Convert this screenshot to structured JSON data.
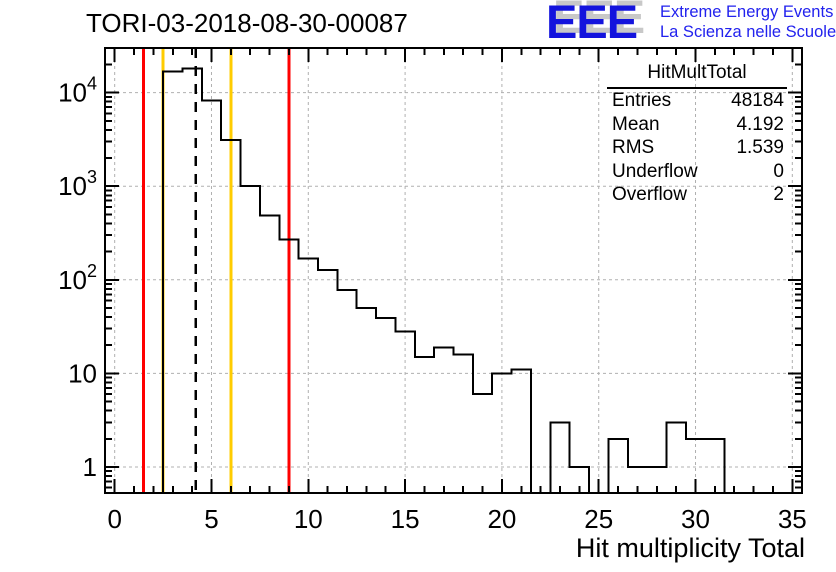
{
  "header": {
    "title": "TORI-03-2018-08-30-00087"
  },
  "logo": {
    "acronym": "EEE",
    "line1": "Extreme Energy Events",
    "line2": "La Scienza nelle Scuole",
    "text_color": "#2222ee",
    "acronym_color": "#1414dd",
    "shadow_color": "#c8c8c8"
  },
  "stats": {
    "title": "HitMultTotal",
    "rows": [
      {
        "label": "Entries",
        "value": "48184"
      },
      {
        "label": "Mean",
        "value": "4.192"
      },
      {
        "label": "RMS",
        "value": "1.539"
      },
      {
        "label": "Underflow",
        "value": "0"
      },
      {
        "label": "Overflow",
        "value": "2"
      }
    ]
  },
  "chart_data": {
    "type": "bar",
    "subtype": "step-histogram",
    "title": "TORI-03-2018-08-30-00087",
    "xlabel": "Hit multiplicity Total",
    "ylabel": "",
    "y_scale": "log",
    "x_range": [
      -0.5,
      35.5
    ],
    "y_range": [
      0.527,
      30000
    ],
    "grid": true,
    "x_major_ticks": [
      0,
      5,
      10,
      15,
      20,
      25,
      30,
      35
    ],
    "y_major_ticks": [
      1,
      10,
      100,
      1000,
      10000
    ],
    "y_tick_labels": [
      {
        "main": "1",
        "exp": ""
      },
      {
        "main": "10",
        "exp": ""
      },
      {
        "main": "10",
        "exp": "2"
      },
      {
        "main": "10",
        "exp": "3"
      },
      {
        "main": "10",
        "exp": "4"
      }
    ],
    "bin_width": 1,
    "bin_centers": [
      0,
      1,
      2,
      3,
      4,
      5,
      6,
      7,
      8,
      9,
      10,
      11,
      12,
      13,
      14,
      15,
      16,
      17,
      18,
      19,
      20,
      21,
      22,
      23,
      24,
      25,
      26,
      27,
      28,
      29,
      30,
      31,
      32,
      33,
      34,
      35
    ],
    "values": [
      0,
      0,
      0,
      16800,
      18100,
      8200,
      3100,
      1000,
      485,
      268,
      168,
      128,
      78,
      50,
      39,
      28,
      15,
      19,
      16,
      6,
      10,
      11,
      0,
      3,
      1,
      0,
      2,
      1,
      1,
      3,
      2,
      2,
      0,
      0,
      0,
      0
    ],
    "hist_color": "#000000",
    "grid_color": "#b0b0b0",
    "markers": [
      {
        "x": 1.5,
        "color": "#ff0000",
        "style": "solid"
      },
      {
        "x": 2.5,
        "color": "#ffcc00",
        "style": "solid"
      },
      {
        "x": 4.192,
        "color": "#000000",
        "style": "dashed"
      },
      {
        "x": 6,
        "color": "#ffcc00",
        "style": "solid"
      },
      {
        "x": 9,
        "color": "#ff0000",
        "style": "solid"
      }
    ]
  }
}
